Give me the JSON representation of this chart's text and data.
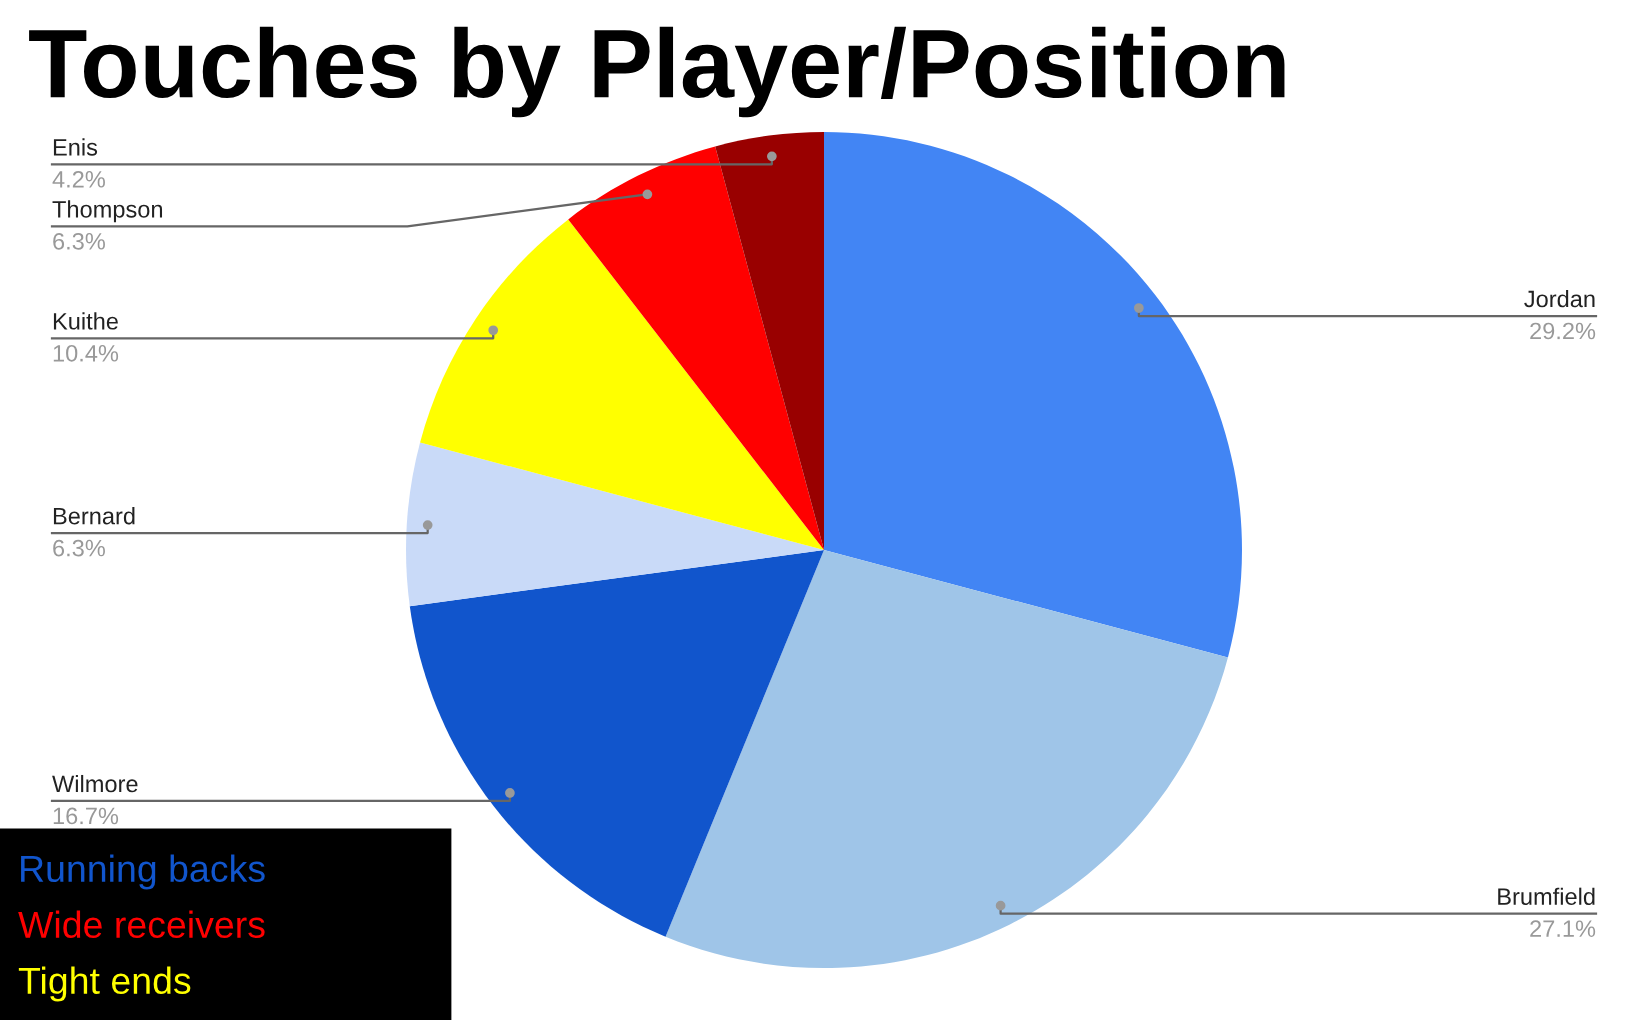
{
  "chart_data": {
    "type": "pie",
    "title": "Touches by Player/Position",
    "categories": [
      "Jordan",
      "Brumfield",
      "Wilmore",
      "Bernard",
      "Kuithe",
      "Thompson",
      "Enis"
    ],
    "values": [
      29.2,
      27.1,
      16.7,
      6.3,
      10.4,
      6.3,
      4.2
    ],
    "colors": [
      "#4285f4",
      "#9fc5e8",
      "#1155cc",
      "#c9daf8",
      "#ffff00",
      "#ff0000",
      "#990000"
    ],
    "value_labels": [
      "29.2%",
      "27.1%",
      "16.7%",
      "6.3%",
      "10.4%",
      "6.3%",
      "4.2%"
    ],
    "annotations": [
      "Running backs",
      "Wide receivers",
      "Tight ends"
    ],
    "legend": false
  }
}
